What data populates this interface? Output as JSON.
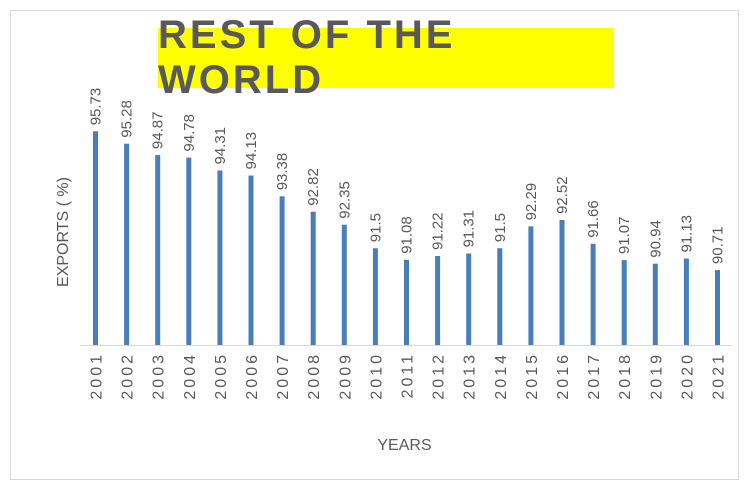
{
  "chart_data": {
    "type": "bar",
    "title": "REST OF THE WORLD",
    "xlabel": "YEARS",
    "ylabel": "EXPORTS ( %)",
    "categories": [
      "2001",
      "2002",
      "2003",
      "2004",
      "2005",
      "2006",
      "2007",
      "2008",
      "2009",
      "2010",
      "2011",
      "2012",
      "2013",
      "2014",
      "2015",
      "2016",
      "2017",
      "2018",
      "2019",
      "2020",
      "2021"
    ],
    "values": [
      95.73,
      95.28,
      94.87,
      94.78,
      94.31,
      94.13,
      93.38,
      92.82,
      92.35,
      91.5,
      91.08,
      91.22,
      91.31,
      91.5,
      92.29,
      92.52,
      91.66,
      91.07,
      90.94,
      91.13,
      90.71
    ],
    "data_labels": [
      "95.73",
      "95.28",
      "94.87",
      "94.78",
      "94.31",
      "94.13",
      "93.38",
      "92.82",
      "92.35",
      "91.5",
      "91.08",
      "91.22",
      "91.31",
      "91.5",
      "92.29",
      "92.52",
      "91.66",
      "91.07",
      "90.94",
      "91.13",
      "90.71"
    ],
    "ylim": [
      88,
      96.5
    ],
    "bar_color": "#4a7ebb",
    "title_background": "#ffff00",
    "grid": false,
    "legend": "none"
  }
}
